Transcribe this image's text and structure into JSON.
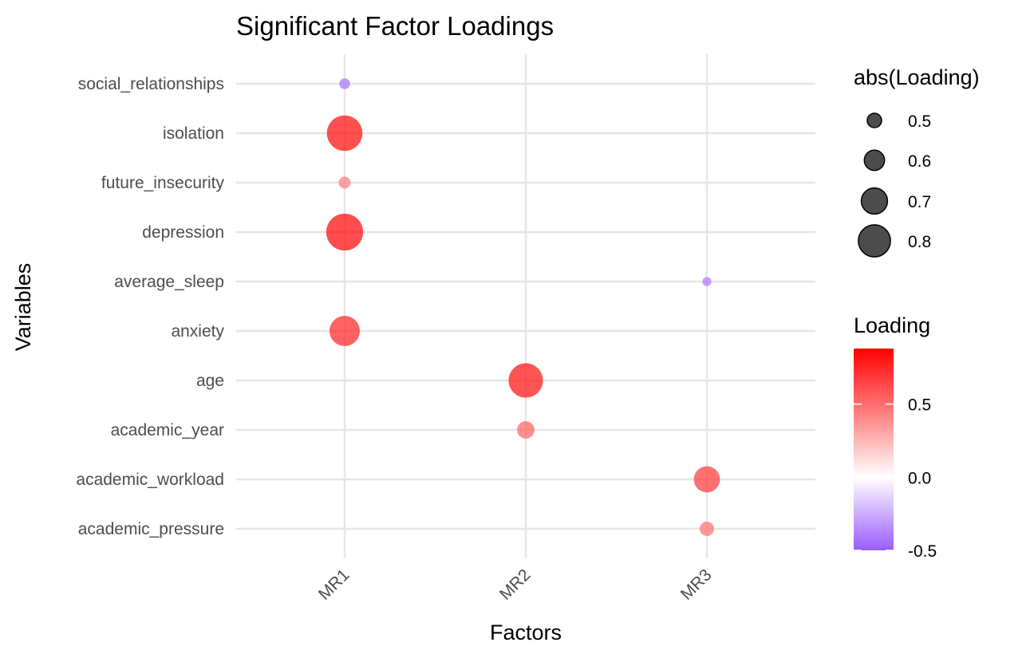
{
  "chart_data": {
    "type": "scatter",
    "title": "Significant Factor Loadings",
    "xlabel": "Factors",
    "ylabel": "Variables",
    "x_categories": [
      "MR1",
      "MR2",
      "MR3"
    ],
    "y_categories": [
      "academic_pressure",
      "academic_workload",
      "academic_year",
      "age",
      "anxiety",
      "average_sleep",
      "depression",
      "future_insecurity",
      "isolation",
      "social_relationships"
    ],
    "points": [
      {
        "variable": "social_relationships",
        "factor": "MR1",
        "loading": -0.44
      },
      {
        "variable": "isolation",
        "factor": "MR1",
        "loading": 0.86
      },
      {
        "variable": "future_insecurity",
        "factor": "MR1",
        "loading": 0.46
      },
      {
        "variable": "depression",
        "factor": "MR1",
        "loading": 0.88
      },
      {
        "variable": "anxiety",
        "factor": "MR1",
        "loading": 0.77
      },
      {
        "variable": "age",
        "factor": "MR2",
        "loading": 0.84
      },
      {
        "variable": "academic_year",
        "factor": "MR2",
        "loading": 0.55
      },
      {
        "variable": "average_sleep",
        "factor": "MR3",
        "loading": -0.41
      },
      {
        "variable": "academic_workload",
        "factor": "MR3",
        "loading": 0.7
      },
      {
        "variable": "academic_pressure",
        "factor": "MR3",
        "loading": 0.5
      }
    ],
    "size_legend": {
      "title": "abs(Loading)",
      "values": [
        0.5,
        0.6,
        0.7,
        0.8
      ],
      "labels": [
        "0.5",
        "0.6",
        "0.7",
        "0.8"
      ]
    },
    "color_legend": {
      "title": "Loading",
      "range": [
        -0.5,
        0.88
      ],
      "breaks": [
        -0.5,
        0.0,
        0.5
      ],
      "labels": [
        "-0.5",
        "0.0",
        "0.5"
      ],
      "low_color": "#9a5cff",
      "mid_color": "#ffffff",
      "high_color": "#ff0000"
    },
    "grid": true,
    "legend_position": "right"
  }
}
